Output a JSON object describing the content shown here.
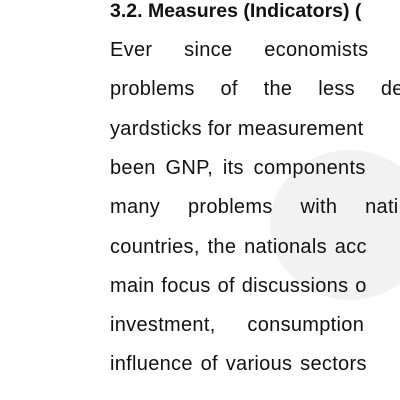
{
  "section": {
    "heading": "3.2. Measures (Indicators) (",
    "lines": [
      "Ever since economists h",
      "problems of the less dev",
      "yardsticks for measurement",
      "been GNP, its components",
      "many problems with nati",
      "countries, the nationals acc",
      "main focus of discussions o",
      "investment, consumption",
      "influence of various sectors"
    ]
  }
}
